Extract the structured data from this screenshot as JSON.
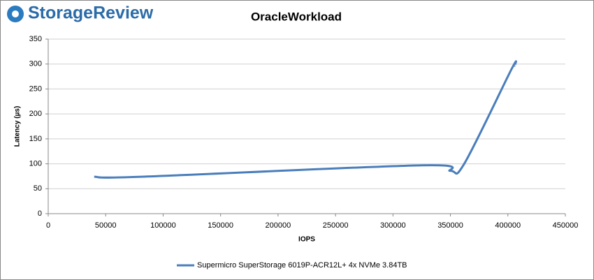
{
  "brand": "StorageReview",
  "chart_data": {
    "type": "line",
    "title": "OracleWorkload",
    "x_label": "IOPS",
    "y_label": "Latency (µs)",
    "x": [
      40000,
      81000,
      325000,
      350000,
      362000,
      403000,
      406000
    ],
    "series": [
      {
        "name": "Supermicro SuperStorage 6019P-ACR12L+ 4x NVMe 3.84TB",
        "color": "#4a7ebb",
        "values": [
          74,
          74,
          97,
          86,
          100,
          289,
          297
        ]
      }
    ],
    "xlim": [
      0,
      450000
    ],
    "xticks": [
      0,
      50000,
      100000,
      150000,
      200000,
      250000,
      300000,
      350000,
      400000,
      450000
    ],
    "ylim": [
      0,
      350
    ],
    "yticks": [
      0,
      50,
      100,
      150,
      200,
      250,
      300,
      350
    ],
    "grid": true,
    "legend": "bottom"
  }
}
